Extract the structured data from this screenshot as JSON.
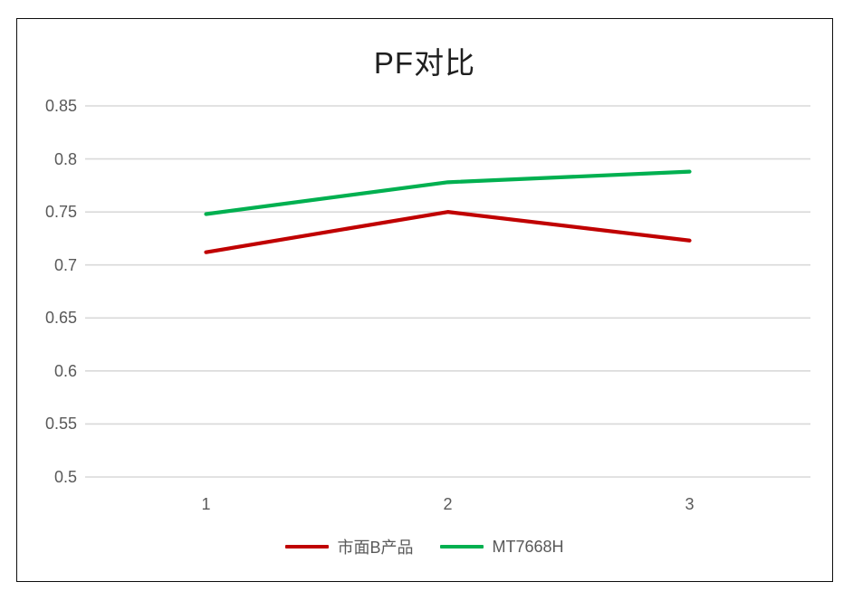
{
  "chart_data": {
    "type": "line",
    "title": "PF对比",
    "categories": [
      "1",
      "2",
      "3"
    ],
    "series": [
      {
        "name": "市面B产品",
        "color": "#c00000",
        "values": [
          0.712,
          0.75,
          0.723
        ]
      },
      {
        "name": "MT7668H",
        "color": "#00b050",
        "values": [
          0.748,
          0.778,
          0.788
        ]
      }
    ],
    "ylim": [
      0.5,
      0.85
    ],
    "yticks": [
      0.5,
      0.55,
      0.6,
      0.65,
      0.7,
      0.75,
      0.8,
      0.85
    ],
    "ytick_labels": [
      "0.5",
      "0.55",
      "0.6",
      "0.65",
      "0.7",
      "0.75",
      "0.8",
      "0.85"
    ],
    "grid": true,
    "legend_position": "bottom",
    "gridline_color": "#d9d9d9",
    "axis_label_color": "#595959",
    "title_color": "#1f1f1f"
  }
}
